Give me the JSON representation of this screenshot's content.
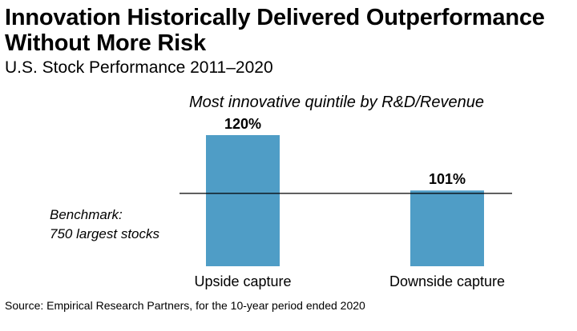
{
  "header": {
    "title": "Innovation Historically Delivered Outperformance Without More Risk",
    "subtitle": "U.S. Stock Performance 2011–2020"
  },
  "footer": {
    "source": "Source: Empirical Research Partners, for the 10-year period ended 2020"
  },
  "colors": {
    "bar": "#4f9dc6",
    "benchmark_line": "#000000"
  },
  "chart_data": {
    "type": "bar",
    "title": "Most innovative quintile by R&D/Revenue",
    "categories": [
      "Upside capture",
      "Downside capture"
    ],
    "values": [
      120,
      101
    ],
    "value_labels": [
      "120%",
      "101%"
    ],
    "unit": "%",
    "benchmark": {
      "value": 100,
      "label_line1": "Benchmark:",
      "label_line2": "750 largest stocks"
    },
    "ylim": [
      75,
      120
    ],
    "xlabel": "",
    "ylabel": "",
    "grid": false,
    "legend": "none"
  }
}
